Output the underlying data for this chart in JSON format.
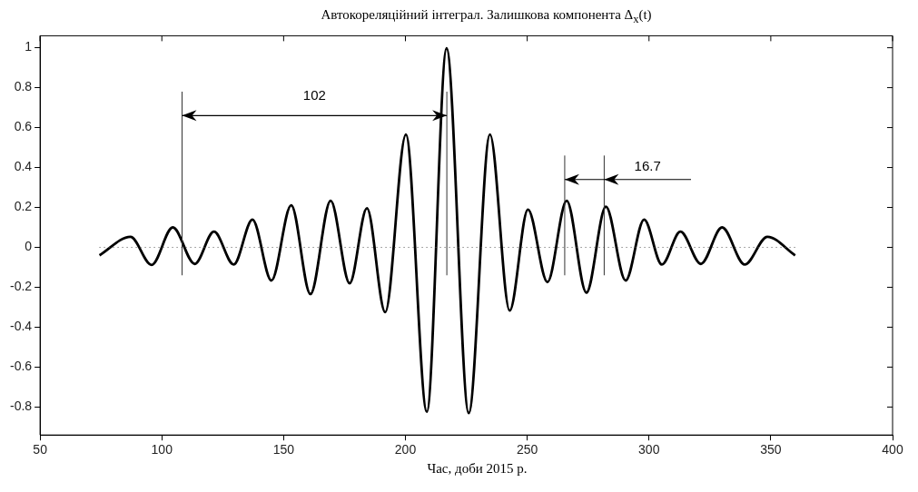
{
  "chart_data": {
    "type": "line",
    "title": "Автокореляційний інтеграл. Залишкова компонента Δ$_{x}$(t)",
    "xlabel": "Час, доби 2015 р.",
    "x": [
      74.4,
      87.1,
      95.8,
      104.5,
      113.5,
      121.4,
      129.5,
      137.2,
      145,
      153.1,
      161,
      169.3,
      177.1,
      184.2,
      191.7,
      200.2,
      208.8,
      216.9,
      226,
      234.7,
      242.8,
      250.3,
      258.3,
      266.2,
      274.3,
      282.3,
      290.4,
      298,
      305.3,
      312.9,
      321.3,
      330,
      339.3,
      348.6,
      360
    ],
    "values": [
      -0.04,
      0.053,
      -0.088,
      0.1,
      -0.083,
      0.079,
      -0.086,
      0.139,
      -0.166,
      0.211,
      -0.234,
      0.234,
      -0.18,
      0.196,
      -0.325,
      0.566,
      -0.824,
      0.997,
      -0.83,
      0.566,
      -0.317,
      0.189,
      -0.174,
      0.234,
      -0.227,
      0.204,
      -0.166,
      0.139,
      -0.086,
      0.079,
      -0.083,
      0.1,
      -0.086,
      0.053,
      -0.04
    ],
    "color": "#000000",
    "xlim": [
      50,
      400
    ],
    "xticks": [
      50,
      100,
      150,
      200,
      250,
      300,
      350,
      400
    ],
    "ylim": [
      -0.94,
      1.06
    ],
    "yticks": [
      -0.8,
      -0.6,
      -0.4,
      -0.2,
      0,
      0.2,
      0.4,
      0.6,
      0.8,
      1
    ],
    "grid": false,
    "legend": false,
    "marker": "none",
    "line_style": "solid",
    "ref_lines": [
      {
        "axis": "y",
        "value": 0,
        "line_style": "dotted"
      },
      {
        "axis": "x",
        "value": 108.3
      },
      {
        "axis": "x",
        "value": 217
      },
      {
        "axis": "x",
        "value": 265.4
      },
      {
        "axis": "x",
        "value": 281.6
      }
    ],
    "annotations": [
      "102",
      "16.7"
    ]
  }
}
